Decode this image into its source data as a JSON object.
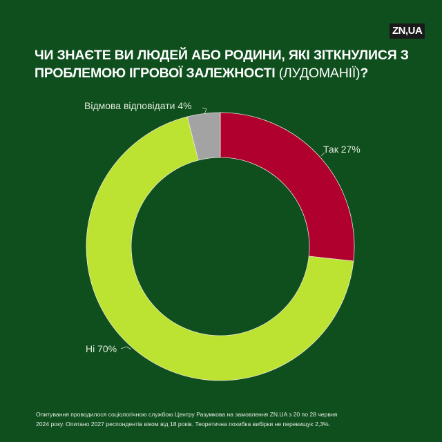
{
  "header": {
    "logo": "ZN,UA",
    "title_bold": "ЧИ ЗНАЄТЕ ВИ ЛЮДЕЙ АБО РОДИНИ, ЯКІ ЗІТКНУЛИСЯ З ПРОБЛЕМОЮ ІГРОВОЇ ЗАЛЕЖНОСТІ",
    "title_light": "(ЛУДОМАНІЇ)",
    "title_end": "?"
  },
  "colors": {
    "background": "#0f4f1e",
    "yes": "#b0002e",
    "no": "#bce232",
    "refuse": "#a3a3a3"
  },
  "chart_data": {
    "type": "pie",
    "subtype": "donut",
    "title": "ЧИ ЗНАЄТЕ ВИ ЛЮДЕЙ АБО РОДИНИ, ЯКІ ЗІТКНУЛИСЯ З ПРОБЛЕМОЮ ІГРОВОЇ ЗАЛЕЖНОСТІ (ЛУДОМАНІЇ)?",
    "categories": [
      "Так",
      "Ні",
      "Відмова відповідати"
    ],
    "values": [
      27,
      70,
      4
    ],
    "unit": "%",
    "labels": [
      "Так 27%",
      "Ні 70%",
      "Відмова відповідати 4%"
    ],
    "colors": [
      "#b0002e",
      "#bce232",
      "#a3a3a3"
    ],
    "start_angle": "12 o'clock, clockwise",
    "legend": "none (direct labels with leader lines)"
  },
  "labels": {
    "yes": "Так 27%",
    "no": "Ні 70%",
    "refuse": "Відмова відповідати 4%"
  },
  "footer": {
    "line1": "Опитування проводилося соціологічною службою Центру Разумкова на замовлення ZN.UA з 20 по 28 червня",
    "line2": "2024 року. Опитано 2027 респондентів віком від 18 років. Теоретична похибка вибірки не перевищує 2,3%."
  }
}
